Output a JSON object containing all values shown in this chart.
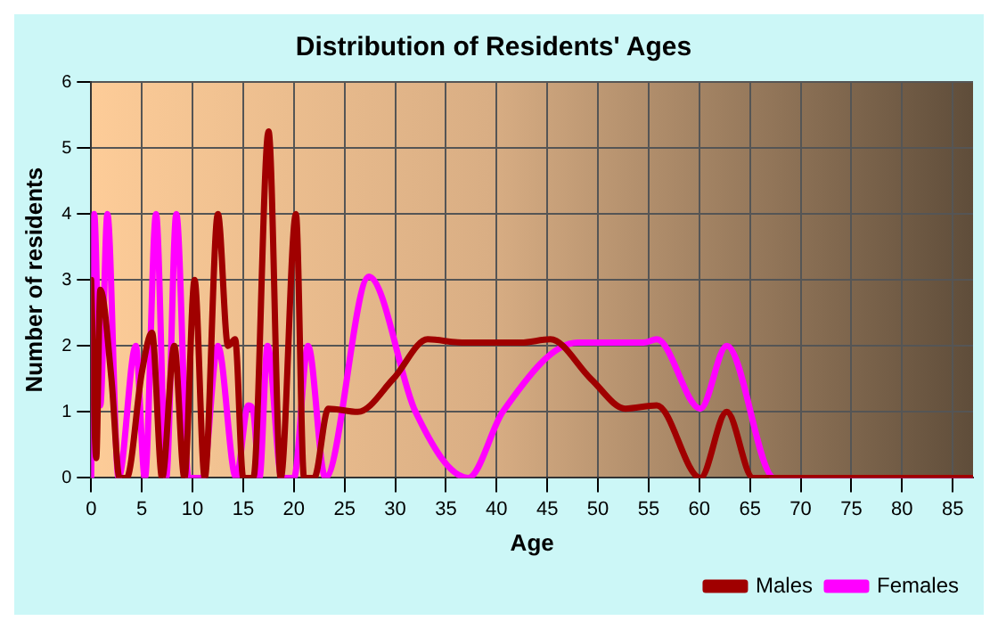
{
  "chart_data": {
    "type": "line",
    "title": "Distribution of Residents' Ages",
    "xlabel": "Age",
    "ylabel": "Number of residents",
    "xlim": [
      0,
      87
    ],
    "xticks": [
      0,
      5,
      10,
      15,
      20,
      25,
      30,
      35,
      40,
      45,
      50,
      55,
      60,
      65,
      70,
      75,
      80,
      85
    ],
    "ylim": [
      0,
      6
    ],
    "yticks": [
      0,
      1,
      2,
      3,
      4,
      5,
      6
    ],
    "grid": true,
    "legend": "bottom right",
    "marker": "none",
    "line_style": "solid",
    "series": [
      {
        "name": "Males",
        "color": "#a00000",
        "x": [
          0,
          0.5,
          0.9,
          2,
          2.8,
          3.5,
          5,
          6,
          7,
          8.2,
          9.2,
          10.2,
          11.2,
          12.5,
          13.5,
          14.2,
          15,
          16,
          17.5,
          18.7,
          20.2,
          21,
          22,
          23.4,
          26.3,
          29.8,
          33.2,
          36.6,
          42.4,
          45.3,
          49.3,
          52.7,
          55.8,
          60.1,
          62.7,
          65.3,
          87
        ],
        "values": [
          3,
          0.3,
          2.85,
          1.5,
          0,
          0,
          1.6,
          2.2,
          0,
          2,
          0,
          3,
          0,
          4,
          2,
          2.1,
          0,
          0,
          5.25,
          0,
          4,
          0,
          0,
          1.05,
          1,
          1.5,
          2.1,
          2.05,
          2.05,
          2.1,
          1.5,
          1.05,
          1.1,
          0,
          1,
          0,
          0
        ]
      },
      {
        "name": "Females",
        "color": "#ff00ff",
        "x": [
          0,
          0.3,
          0.9,
          1.6,
          2.7,
          4.4,
          5.3,
          6.4,
          7.4,
          8.4,
          9.6,
          11,
          12.5,
          14.3,
          15.5,
          16,
          16.6,
          17.4,
          18.8,
          20,
          21.4,
          23.1,
          27.4,
          32,
          37.2,
          40.6,
          48,
          54.5,
          55.8,
          60.1,
          62.7,
          67.4,
          87
        ],
        "values": [
          0,
          4,
          1.1,
          4,
          0,
          2,
          0,
          4,
          0,
          4,
          0,
          0,
          2,
          0,
          1.1,
          1,
          0,
          2,
          0,
          0,
          2,
          0,
          3.05,
          1,
          0,
          1,
          2.05,
          2.05,
          2.1,
          1.05,
          2,
          0,
          0
        ]
      }
    ]
  }
}
